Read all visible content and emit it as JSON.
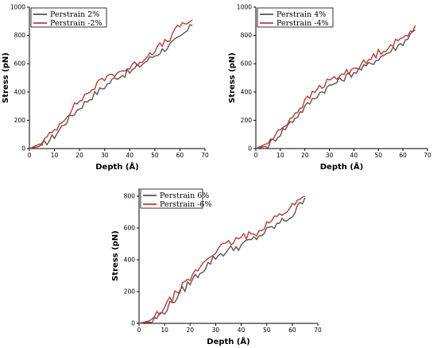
{
  "chart_data": [
    {
      "type": "line",
      "xlabel": "Depth (Å)",
      "ylabel": "Stress (pN)",
      "xlim": [
        0,
        70
      ],
      "ylim": [
        0,
        1000
      ],
      "xticks": [
        "0",
        "10",
        "20",
        "30",
        "40",
        "50",
        "60",
        "70"
      ],
      "yticks": [
        "0",
        "200",
        "400",
        "600",
        "800",
        "1000"
      ],
      "legend_position": "top-left",
      "x": [
        0,
        5,
        10,
        15,
        20,
        25,
        30,
        35,
        40,
        45,
        50,
        55,
        60,
        65
      ],
      "series": [
        {
          "name": "Perstrain 2%",
          "color": "#555555",
          "values": [
            0,
            20,
            90,
            200,
            290,
            370,
            440,
            510,
            540,
            600,
            660,
            720,
            780,
            870
          ]
        },
        {
          "name": "Perstrain -2%",
          "color": "#c0392b",
          "values": [
            0,
            40,
            130,
            240,
            340,
            420,
            500,
            540,
            570,
            630,
            700,
            760,
            870,
            910
          ]
        }
      ]
    },
    {
      "type": "line",
      "xlabel": "Depth (Å)",
      "ylabel": "Stress (pN)",
      "xlim": [
        0,
        70
      ],
      "ylim": [
        0,
        1000
      ],
      "xticks": [
        "0",
        "10",
        "20",
        "30",
        "40",
        "50",
        "60",
        "70"
      ],
      "yticks": [
        "0",
        "200",
        "400",
        "600",
        "800",
        "1000"
      ],
      "legend_position": "top-left",
      "x": [
        0,
        5,
        10,
        15,
        20,
        25,
        30,
        35,
        40,
        45,
        50,
        55,
        60,
        65
      ],
      "series": [
        {
          "name": "Perstrain 4%",
          "color": "#555555",
          "values": [
            0,
            20,
            110,
            200,
            290,
            380,
            440,
            490,
            540,
            580,
            640,
            690,
            750,
            840
          ]
        },
        {
          "name": "Perstrain -4%",
          "color": "#c0392b",
          "values": [
            0,
            40,
            130,
            230,
            330,
            420,
            480,
            520,
            570,
            610,
            680,
            730,
            780,
            870
          ]
        }
      ]
    },
    {
      "type": "line",
      "xlabel": "Depth (Å)",
      "ylabel": "Stress (pN)",
      "xlim": [
        0,
        70
      ],
      "ylim": [
        0,
        850
      ],
      "xticks": [
        "0",
        "10",
        "20",
        "30",
        "40",
        "50",
        "60",
        "70"
      ],
      "yticks": [
        "0",
        "200",
        "400",
        "600",
        "800"
      ],
      "legend_position": "top-left",
      "x": [
        0,
        5,
        10,
        15,
        20,
        25,
        30,
        35,
        40,
        45,
        50,
        55,
        60,
        65
      ],
      "series": [
        {
          "name": "Perstrain 6%",
          "color": "#555555",
          "values": [
            0,
            10,
            80,
            170,
            260,
            340,
            420,
            460,
            490,
            530,
            580,
            630,
            680,
            790
          ]
        },
        {
          "name": "Perstrain -6%",
          "color": "#c0392b",
          "values": [
            0,
            20,
            100,
            200,
            280,
            380,
            460,
            500,
            540,
            560,
            630,
            680,
            740,
            800
          ]
        }
      ]
    }
  ]
}
